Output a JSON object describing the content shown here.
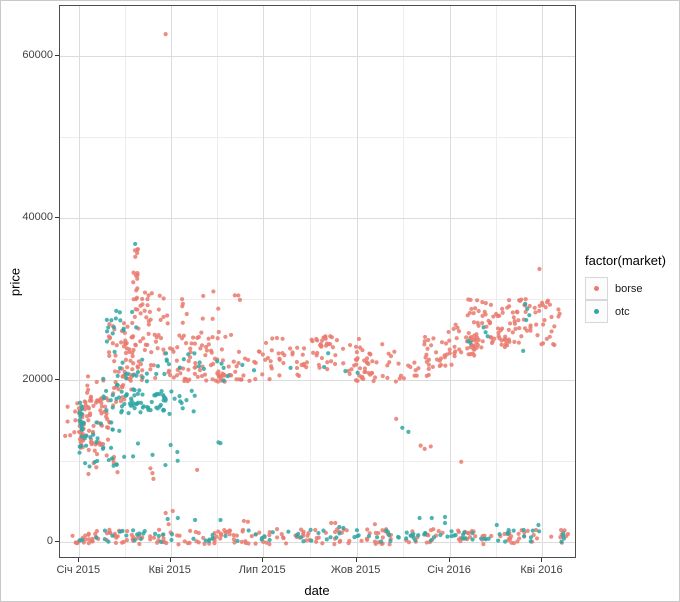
{
  "figure": {
    "background": "#ffffff",
    "panel_border": "#4d4d4d",
    "grid_major": "#dcdcdc",
    "grid_minor": "#ededed",
    "tick_color": "#333333",
    "tick_text_color": "#404040"
  },
  "axes": {
    "y": {
      "title": "price"
    },
    "x": {
      "title": "date"
    }
  },
  "legend": {
    "title": "factor(market)",
    "items": [
      {
        "label": "borse",
        "color": "#EA7A6E"
      },
      {
        "label": "otc",
        "color": "#2FA7A4"
      }
    ]
  },
  "chart_data": {
    "type": "scatter",
    "title": "",
    "xlabel": "date",
    "ylabel": "price",
    "x_unit": "days_since_2015-01-01",
    "xlim": [
      -19,
      488
    ],
    "ylim": [
      -1850,
      66170
    ],
    "x_ticks": {
      "days": [
        0,
        90,
        181,
        273,
        365,
        456
      ],
      "labels": [
        "Січ 2015",
        "Кві 2015",
        "Лип 2015",
        "Жов 2015",
        "Січ 2016",
        "Кві 2016"
      ]
    },
    "y_ticks": {
      "values": [
        0,
        20000,
        40000,
        60000
      ],
      "labels": [
        "0",
        "20000",
        "40000",
        "60000"
      ]
    },
    "minor_x_days": [
      45,
      135.5,
      227,
      319,
      410.5
    ],
    "minor_y": [
      10000,
      30000,
      50000
    ],
    "legend_position": "right",
    "point_radius_px": 2.1,
    "notable_points": {
      "max_outlier": {
        "series": "borse",
        "day": 85,
        "price": 62700
      }
    },
    "series": [
      {
        "name": "borse",
        "color": "#EA7A6E",
        "clusters": [
          {
            "n": 20,
            "d": [
              -1,
              5
            ],
            "p": [
              11500,
              17000
            ]
          },
          {
            "n": 50,
            "d": [
              1,
              30
            ],
            "p": [
              11700,
              18000
            ]
          },
          {
            "n": 14,
            "d": [
              -15,
              8
            ],
            "p": [
              13000,
              17500
            ]
          },
          {
            "n": 10,
            "d": [
              5,
              38
            ],
            "p": [
              8600,
              11700
            ]
          },
          {
            "n": 18,
            "d": [
              5,
              42
            ],
            "p": [
              16000,
              20500
            ]
          },
          {
            "n": 45,
            "d": [
              28,
              58
            ],
            "p": [
              17300,
              27200
            ]
          },
          {
            "n": 20,
            "d": [
              52,
              58
            ],
            "p": [
              26000,
              36500
            ]
          },
          {
            "n": 15,
            "d": [
              58,
              72
            ],
            "p": [
              26000,
              32000
            ]
          },
          {
            "n": 22,
            "d": [
              67,
              160
            ],
            "p": [
              25900,
              31000
            ]
          },
          {
            "n": 135,
            "d": [
              42,
              165
            ],
            "p": [
              19800,
              25900
            ]
          },
          {
            "n": 90,
            "d": [
              165,
              300
            ],
            "p": [
              19800,
              25300
            ]
          },
          {
            "n": 12,
            "d": [
              237,
              250
            ],
            "p": [
              24000,
              25700
            ]
          },
          {
            "n": 40,
            "d": [
              274,
              345
            ],
            "p": [
              19800,
              23500
            ]
          },
          {
            "n": 25,
            "d": [
              338,
              368
            ],
            "p": [
              21600,
              26000
            ]
          },
          {
            "n": 30,
            "d": [
              364,
              392
            ],
            "p": [
              22800,
              27200
            ]
          },
          {
            "n": 120,
            "d": [
              382,
              474
            ],
            "p": [
              24000,
              30000
            ]
          },
          {
            "n": 230,
            "d": [
              -7,
              482
            ],
            "p": [
              -300,
              1600
            ]
          }
        ],
        "points": [
          [
            85,
            62700
          ],
          [
            453,
            33700
          ],
          [
            9,
            8400
          ],
          [
            70,
            9100
          ],
          [
            72,
            8500
          ],
          [
            73,
            7800
          ],
          [
            116,
            8900
          ],
          [
            312,
            15200
          ],
          [
            336,
            11900
          ],
          [
            340,
            11500
          ],
          [
            346,
            11800
          ],
          [
            376,
            9900
          ],
          [
            88,
            2200
          ],
          [
            162,
            2600
          ],
          [
            166,
            2500
          ],
          [
            248,
            2350
          ],
          [
            252,
            2350
          ],
          [
            291,
            2200
          ],
          [
            85,
            3580
          ],
          [
            92,
            3830
          ]
        ]
      },
      {
        "name": "otc",
        "color": "#2FA7A4",
        "clusters": [
          {
            "n": 18,
            "d": [
              0,
              4
            ],
            "p": [
              10400,
              17500
            ]
          },
          {
            "n": 22,
            "d": [
              2,
              40
            ],
            "p": [
              9300,
              14800
            ]
          },
          {
            "n": 30,
            "d": [
              22,
              63
            ],
            "p": [
              16000,
              21500
            ]
          },
          {
            "n": 14,
            "d": [
              26,
              58
            ],
            "p": [
              21500,
              28800
            ]
          },
          {
            "n": 55,
            "d": [
              37,
              118
            ],
            "p": [
              15800,
              18800
            ]
          },
          {
            "n": 24,
            "d": [
              60,
              165
            ],
            "p": [
              19800,
              23300
            ]
          },
          {
            "n": 12,
            "d": [
              16,
              98
            ],
            "p": [
              9300,
              12300
            ]
          },
          {
            "n": 110,
            "d": [
              -5,
              478
            ],
            "p": [
              0,
              1500
            ]
          }
        ],
        "points": [
          [
            55,
            36800
          ],
          [
            52,
            28400
          ],
          [
            56,
            26500
          ],
          [
            36,
            27600
          ],
          [
            137,
            12300
          ],
          [
            139,
            12200
          ],
          [
            172,
            21200
          ],
          [
            208,
            21500
          ],
          [
            241,
            21600
          ],
          [
            245,
            23300
          ],
          [
            262,
            21100
          ],
          [
            274,
            20900
          ],
          [
            318,
            14100
          ],
          [
            324,
            13600
          ],
          [
            383,
            24800
          ],
          [
            385,
            24600
          ],
          [
            398,
            26500
          ],
          [
            400,
            25900
          ],
          [
            402,
            25400
          ],
          [
            437,
            23600
          ],
          [
            439,
            29400
          ],
          [
            441,
            28800
          ],
          [
            443,
            28000
          ],
          [
            440,
            27400
          ],
          [
            87,
            2840
          ],
          [
            97,
            2960
          ],
          [
            114,
            2720
          ],
          [
            139,
            2720
          ],
          [
            335,
            2960
          ],
          [
            347,
            2960
          ],
          [
            360,
            3090
          ],
          [
            360,
            2350
          ],
          [
            411,
            2100
          ],
          [
            452,
            2100
          ],
          [
            256,
            1850
          ],
          [
            260,
            1730
          ]
        ]
      }
    ]
  }
}
